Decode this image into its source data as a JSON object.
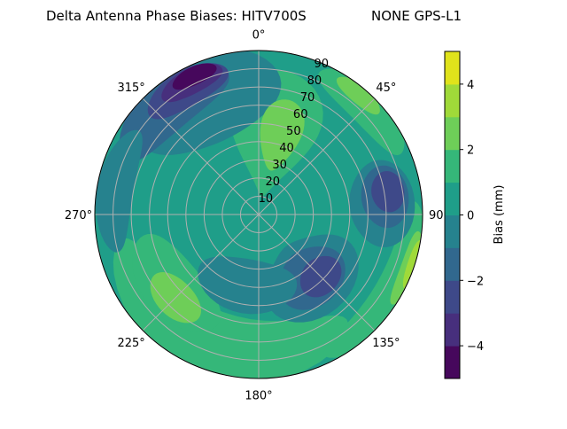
{
  "chart_data": {
    "type": "heatmap",
    "projection": "polar",
    "title_left": "Delta Antenna Phase Biases: HITV700S",
    "title_right": "NONE GPS-L1",
    "angle_direction": "clockwise",
    "angle_zero": "top",
    "angle_ticks": [
      "0°",
      "45°",
      "90°",
      "135°",
      "180°",
      "225°",
      "270°",
      "315°"
    ],
    "radial_ticks": [
      "10",
      "20",
      "30",
      "40",
      "50",
      "60",
      "70",
      "80",
      "90"
    ],
    "radial_range": [
      0,
      90
    ],
    "grid": true,
    "colorbar": {
      "label": "Bias (mm)",
      "range": [
        -5,
        5
      ],
      "levels": [
        -5,
        -4,
        -3,
        -2,
        -1,
        0,
        1,
        2,
        3,
        4,
        5
      ],
      "ticks": [
        "−4",
        "−2",
        "0",
        "2",
        "4"
      ],
      "tick_values": [
        -4,
        -2,
        0,
        2,
        4
      ],
      "colors": [
        "#46085c",
        "#472f7d",
        "#3e4989",
        "#31688e",
        "#26828e",
        "#1f9e89",
        "#35b779",
        "#6ece58",
        "#a0da39",
        "#e0e31b"
      ],
      "colormap": "viridis"
    },
    "background_value": 0.5,
    "regions": [
      {
        "az": 200,
        "zen": 75,
        "daz": 60,
        "dzen": 18,
        "value": 1.5
      },
      {
        "az": 230,
        "zen": 62,
        "daz": 30,
        "dzen": 16,
        "value": 1.5
      },
      {
        "az": 10,
        "zen": 45,
        "daz": 28,
        "dzen": 35,
        "value": 1.5
      },
      {
        "az": 45,
        "zen": 84,
        "daz": 22,
        "dzen": 10,
        "value": 1.5
      },
      {
        "az": 120,
        "zen": 85,
        "daz": 35,
        "dzen": 10,
        "value": 1.5
      },
      {
        "az": 335,
        "zen": 70,
        "daz": 35,
        "dzen": 25,
        "value": -0.5
      },
      {
        "az": 320,
        "zen": 78,
        "daz": 28,
        "dzen": 14,
        "value": -1.5
      },
      {
        "az": 330,
        "zen": 80,
        "daz": 18,
        "dzen": 10,
        "value": -2.5
      },
      {
        "az": 333,
        "zen": 82,
        "daz": 13,
        "dzen": 7,
        "value": -3.5
      },
      {
        "az": 335,
        "zen": 84,
        "daz": 9,
        "dzen": 5,
        "value": -4.5
      },
      {
        "az": 280,
        "zen": 80,
        "daz": 25,
        "dzen": 10,
        "value": -0.5
      },
      {
        "az": 85,
        "zen": 68,
        "daz": 20,
        "dzen": 18,
        "value": -0.5
      },
      {
        "az": 82,
        "zen": 70,
        "daz": 14,
        "dzen": 13,
        "value": -1.5
      },
      {
        "az": 80,
        "zen": 72,
        "daz": 9,
        "dzen": 9,
        "value": -2.5
      },
      {
        "az": 140,
        "zen": 45,
        "daz": 35,
        "dzen": 22,
        "value": -0.5
      },
      {
        "az": 140,
        "zen": 45,
        "daz": 25,
        "dzen": 16,
        "value": -1.5
      },
      {
        "az": 135,
        "zen": 48,
        "daz": 15,
        "dzen": 10,
        "value": -2.5
      },
      {
        "az": 190,
        "zen": 40,
        "daz": 40,
        "dzen": 15,
        "value": -0.5
      },
      {
        "az": 15,
        "zen": 45,
        "daz": 14,
        "dzen": 20,
        "value": 2.5
      },
      {
        "az": 225,
        "zen": 65,
        "daz": 15,
        "dzen": 10,
        "value": 2.5
      },
      {
        "az": 40,
        "zen": 86,
        "daz": 10,
        "dzen": 5,
        "value": 2.5
      },
      {
        "az": 110,
        "zen": 88,
        "daz": 14,
        "dzen": 5,
        "value": 2.5
      },
      {
        "az": 108,
        "zen": 90,
        "daz": 9,
        "dzen": 4,
        "value": 3.5
      }
    ]
  }
}
